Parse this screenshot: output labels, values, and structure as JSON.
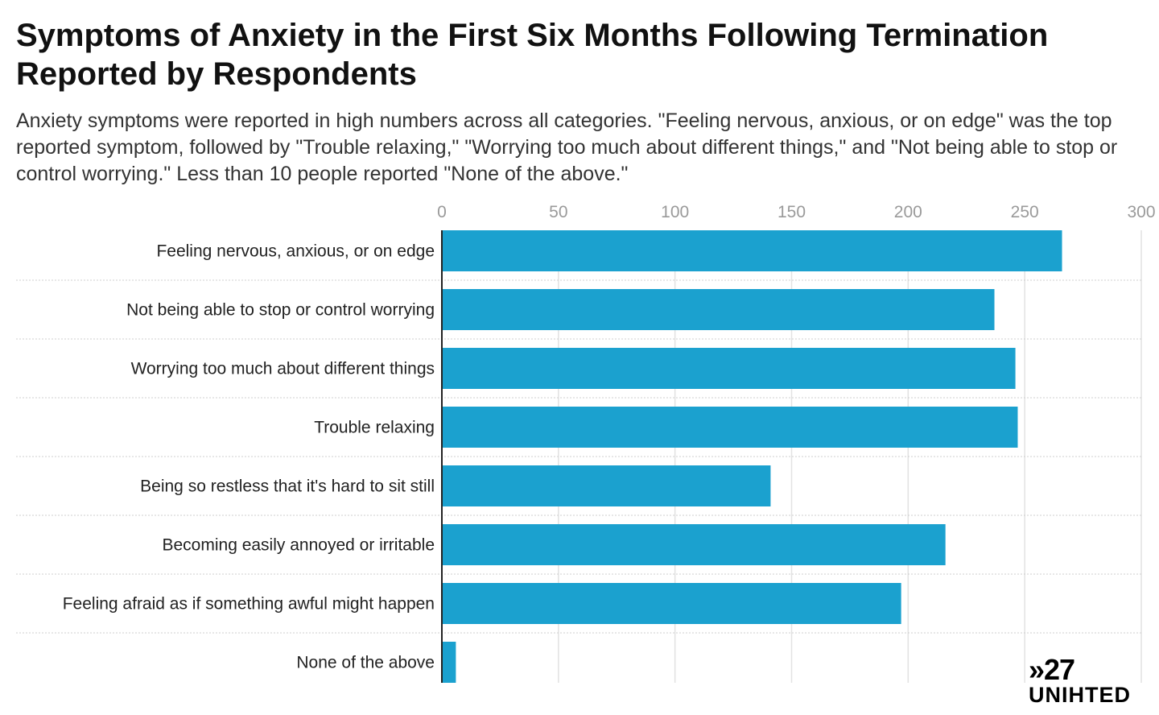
{
  "chart_data": {
    "type": "bar",
    "orientation": "horizontal",
    "title": "Symptoms of Anxiety in the First Six Months Following Termination Reported by Respondents",
    "subtitle": "Anxiety symptoms were reported in high numbers across all categories. \"Feeling nervous, anxious, or on edge\" was the top reported symptom, followed by \"Trouble relaxing,\" \"Worrying too much about different things,\" and \"Not being able to stop or control worrying.\" Less than 10 people reported \"None of the above.\"",
    "categories": [
      "Feeling nervous, anxious, or on edge",
      "Not being able to stop or control worrying",
      "Worrying too much about different things",
      "Trouble relaxing",
      "Being so restless that it's hard to sit still",
      "Becoming easily annoyed or irritable",
      "Feeling afraid as if something awful might happen",
      "None of the above"
    ],
    "values": [
      266,
      237,
      246,
      247,
      141,
      216,
      197,
      6
    ],
    "xlim": [
      0,
      300
    ],
    "xticks": [
      0,
      50,
      100,
      150,
      200,
      250,
      300
    ],
    "xaxis_position": "top",
    "grid": true,
    "bar_color": "#1ba1cf",
    "xlabel": "",
    "ylabel": ""
  },
  "branding": {
    "logo_top": "»27",
    "logo_bottom": "UNIHTED"
  }
}
